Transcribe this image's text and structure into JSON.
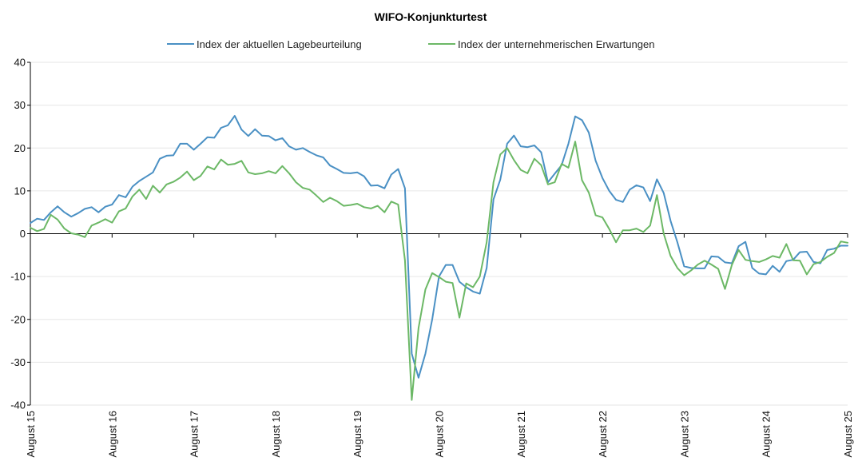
{
  "chart_data": {
    "type": "line",
    "title": "WIFO-Konjunkturtest",
    "xlabel": "",
    "ylabel": "",
    "ylim": [
      -40,
      40
    ],
    "yticks": [
      40,
      30,
      20,
      10,
      0,
      -10,
      -20,
      -30,
      -40
    ],
    "grid": true,
    "legend_position": "top",
    "x_tick_labels": [
      "August 15",
      "August 16",
      "August 17",
      "August 18",
      "August 19",
      "August 20",
      "August 21",
      "August 22",
      "August 23",
      "August 24",
      "August 25"
    ],
    "x_start": "2015-08",
    "x_end": "2025-08",
    "series": [
      {
        "name": "Index der aktuellen Lagebeurteilung",
        "color": "#4a90c4",
        "values": [
          2.5,
          3.5,
          3.2,
          5.0,
          6.4,
          5.0,
          4.0,
          4.8,
          5.8,
          6.2,
          5.0,
          6.3,
          6.8,
          9.0,
          8.5,
          11.0,
          12.3,
          13.3,
          14.3,
          17.5,
          18.2,
          18.3,
          21.0,
          21.0,
          19.6,
          21.0,
          22.5,
          22.4,
          24.7,
          25.3,
          27.5,
          24.3,
          22.8,
          24.4,
          22.9,
          22.8,
          21.8,
          22.3,
          20.4,
          19.6,
          20.0,
          19.1,
          18.3,
          17.8,
          15.9,
          15.1,
          14.2,
          14.1,
          14.3,
          13.4,
          11.2,
          11.3,
          10.6,
          13.8,
          15.1,
          10.6,
          -28.0,
          -33.6,
          -28.0,
          -20.0,
          -10.0,
          -7.3,
          -7.3,
          -11.2,
          -12.5,
          -13.5,
          -14.0,
          -8.0,
          8.0,
          12.6,
          21.0,
          22.9,
          20.4,
          20.2,
          20.6,
          19.0,
          12.0,
          14.0,
          16.0,
          21.0,
          27.4,
          26.5,
          23.6,
          17.0,
          13.0,
          10.0,
          7.9,
          7.4,
          10.3,
          11.3,
          10.8,
          7.6,
          12.7,
          9.5,
          3.0,
          -2.0,
          -7.6,
          -8.0,
          -8.1,
          -8.1,
          -5.3,
          -5.4,
          -6.7,
          -6.9,
          -2.9,
          -1.9,
          -8.0,
          -9.3,
          -9.5,
          -7.5,
          -8.9,
          -6.4,
          -6.1,
          -4.3,
          -4.2,
          -6.6,
          -6.9,
          -3.8,
          -3.5,
          -2.8,
          -2.8
        ]
      },
      {
        "name": "Index der unternehmerischen Erwartungen",
        "color": "#6cb866",
        "values": [
          1.4,
          0.6,
          1.1,
          4.4,
          3.3,
          1.2,
          0.1,
          -0.2,
          -0.8,
          1.9,
          2.6,
          3.4,
          2.6,
          5.2,
          5.9,
          8.7,
          10.3,
          8.1,
          11.2,
          9.6,
          11.5,
          12.1,
          13.1,
          14.5,
          12.5,
          13.5,
          15.7,
          15.0,
          17.3,
          16.1,
          16.3,
          17.0,
          14.3,
          13.9,
          14.1,
          14.6,
          14.1,
          15.8,
          14.1,
          12.0,
          10.7,
          10.3,
          8.9,
          7.4,
          8.4,
          7.6,
          6.5,
          6.7,
          7.0,
          6.2,
          5.9,
          6.5,
          5.0,
          7.5,
          6.8,
          -6.2,
          -38.8,
          -22.0,
          -13.0,
          -9.2,
          -10.1,
          -11.2,
          -11.5,
          -19.6,
          -11.6,
          -12.5,
          -10.0,
          -2.0,
          12.0,
          18.5,
          20.0,
          17.2,
          14.9,
          14.1,
          17.5,
          16.0,
          11.5,
          12.0,
          16.3,
          15.4,
          21.5,
          12.5,
          9.6,
          4.3,
          3.8,
          1.1,
          -2.0,
          0.8,
          0.8,
          1.2,
          0.4,
          1.9,
          9.0,
          0.0,
          -5.2,
          -8.0,
          -9.7,
          -8.6,
          -7.2,
          -6.3,
          -7.2,
          -8.2,
          -12.9,
          -7.3,
          -3.8,
          -6.1,
          -6.4,
          -6.6,
          -6.0,
          -5.2,
          -5.6,
          -2.4,
          -6.2,
          -6.3,
          -9.5,
          -7.1,
          -6.6,
          -5.4,
          -4.5,
          -1.8,
          -2.1
        ]
      }
    ]
  }
}
